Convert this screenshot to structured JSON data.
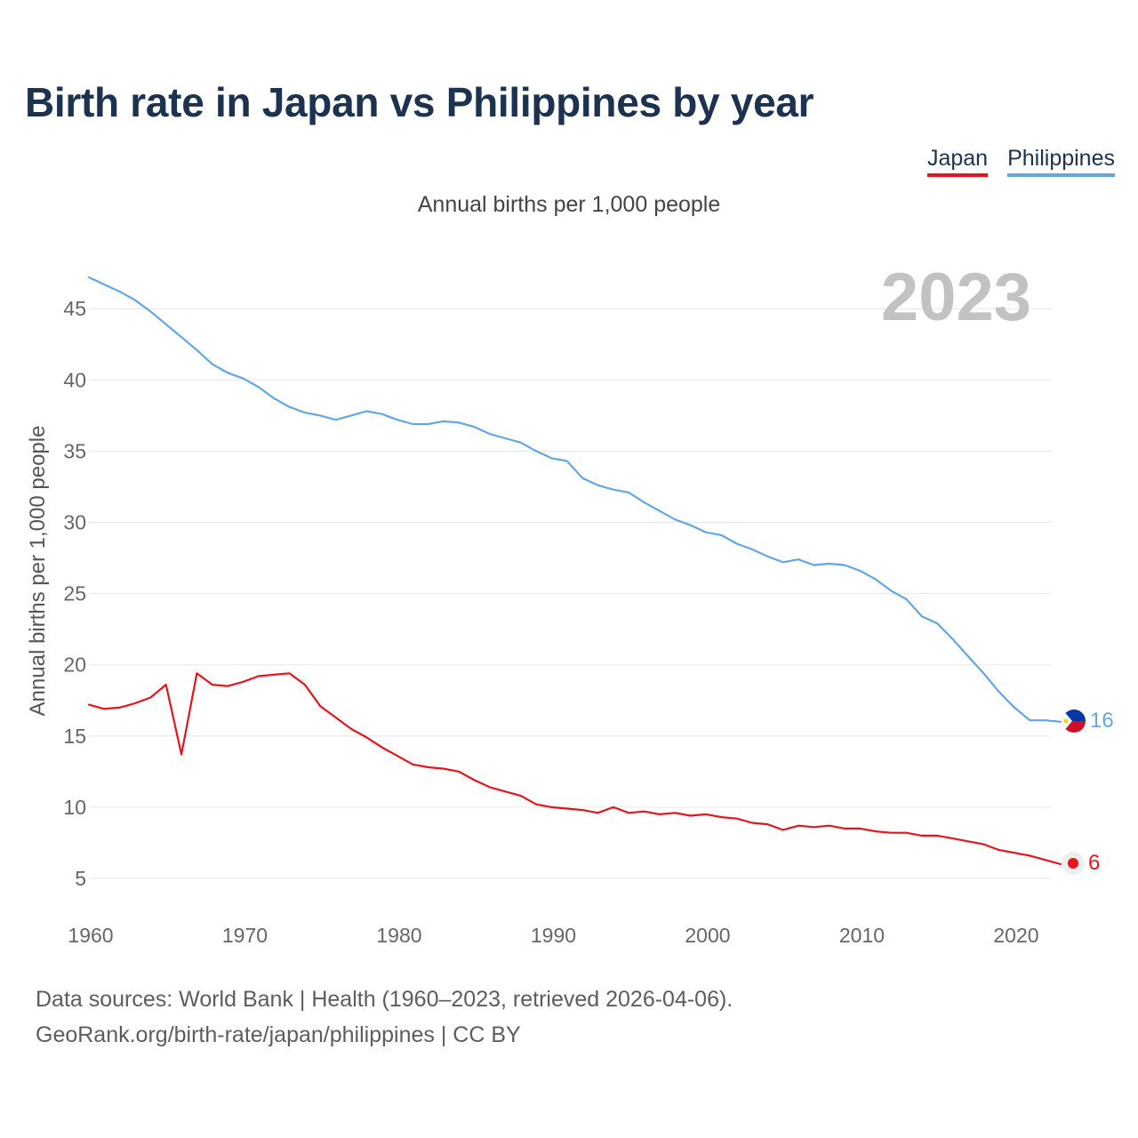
{
  "header": {
    "title": "Birth rate in Japan vs Philippines by year",
    "subtitle": "Annual births per 1,000 people"
  },
  "legend": [
    {
      "label": "Japan",
      "color": "#e8141c"
    },
    {
      "label": "Philippines",
      "color": "#62a6e4"
    }
  ],
  "footer": {
    "source": "Data sources: World Bank | Health (1960–2023, retrieved 2026-04-06).",
    "credit": "GeoRank.org/birth-rate/japan/philippines | CC BY"
  },
  "chart_data": {
    "type": "line",
    "title": "Birth rate in Japan vs Philippines by year",
    "ylabel": "Annual births per 1,000 people",
    "xlabel": "",
    "year_label": "2023",
    "xlim": [
      1960,
      2023
    ],
    "ylim": [
      2.5,
      48
    ],
    "yticks": [
      5,
      10,
      15,
      20,
      25,
      30,
      35,
      40,
      45
    ],
    "xticks": [
      1960,
      1970,
      1980,
      1990,
      2000,
      2010,
      2020
    ],
    "grid": true,
    "x": [
      1960,
      1961,
      1962,
      1963,
      1964,
      1965,
      1966,
      1967,
      1968,
      1969,
      1970,
      1971,
      1972,
      1973,
      1974,
      1975,
      1976,
      1977,
      1978,
      1979,
      1980,
      1981,
      1982,
      1983,
      1984,
      1985,
      1986,
      1987,
      1988,
      1989,
      1990,
      1991,
      1992,
      1993,
      1994,
      1995,
      1996,
      1997,
      1998,
      1999,
      2000,
      2001,
      2002,
      2003,
      2004,
      2005,
      2006,
      2007,
      2008,
      2009,
      2010,
      2011,
      2012,
      2013,
      2014,
      2015,
      2016,
      2017,
      2018,
      2019,
      2020,
      2021,
      2022,
      2023
    ],
    "series": [
      {
        "name": "Japan",
        "color": "#e8141c",
        "end_label": "6",
        "values": [
          17.2,
          16.9,
          17.0,
          17.3,
          17.7,
          18.6,
          13.7,
          19.4,
          18.6,
          18.5,
          18.8,
          19.2,
          19.3,
          19.4,
          18.6,
          17.1,
          16.3,
          15.5,
          14.9,
          14.2,
          13.6,
          13.0,
          12.8,
          12.7,
          12.5,
          11.9,
          11.4,
          11.1,
          10.8,
          10.2,
          10.0,
          9.9,
          9.8,
          9.6,
          10.0,
          9.6,
          9.7,
          9.5,
          9.6,
          9.4,
          9.5,
          9.3,
          9.2,
          8.9,
          8.8,
          8.4,
          8.7,
          8.6,
          8.7,
          8.5,
          8.5,
          8.3,
          8.2,
          8.2,
          8.0,
          8.0,
          7.8,
          7.6,
          7.4,
          7.0,
          6.8,
          6.6,
          6.3,
          6.0
        ]
      },
      {
        "name": "Philippines",
        "color": "#62a6e4",
        "end_label": "16",
        "values": [
          47.2,
          46.7,
          46.2,
          45.6,
          44.8,
          43.9,
          43.0,
          42.1,
          41.1,
          40.5,
          40.1,
          39.5,
          38.7,
          38.1,
          37.7,
          37.5,
          37.2,
          37.5,
          37.8,
          37.6,
          37.2,
          36.9,
          36.9,
          37.1,
          37.0,
          36.7,
          36.2,
          35.9,
          35.6,
          35.0,
          34.5,
          34.3,
          33.1,
          32.6,
          32.3,
          32.1,
          31.4,
          30.8,
          30.2,
          29.8,
          29.3,
          29.1,
          28.5,
          28.1,
          27.6,
          27.2,
          27.4,
          27.0,
          27.1,
          27.0,
          26.6,
          26.0,
          25.2,
          24.6,
          23.4,
          22.9,
          21.8,
          20.6,
          19.4,
          18.1,
          17.0,
          16.1,
          16.1,
          16.0
        ]
      }
    ]
  }
}
